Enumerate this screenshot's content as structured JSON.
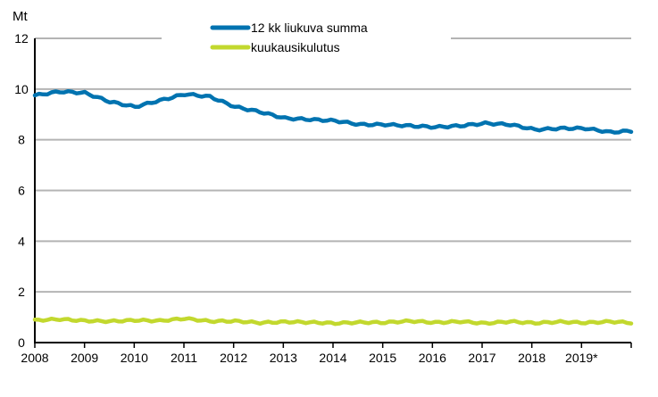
{
  "chart_data": {
    "type": "line",
    "title": "",
    "ylabel": "Mt",
    "xlabel": "",
    "ylim": [
      0,
      12
    ],
    "yticks": [
      0,
      2,
      4,
      6,
      8,
      10,
      12
    ],
    "xticks": [
      "2008",
      "2009",
      "2010",
      "2011",
      "2012",
      "2013",
      "2014",
      "2015",
      "2016",
      "2017",
      "2018",
      "2019*"
    ],
    "grid": true,
    "legend_position": "top-center",
    "x_resolution": "semi-annual points (approximate, read from monthly series)",
    "x": [
      "2008-01",
      "2008-07",
      "2009-01",
      "2009-07",
      "2010-01",
      "2010-07",
      "2011-01",
      "2011-07",
      "2012-01",
      "2012-07",
      "2013-01",
      "2013-07",
      "2014-01",
      "2014-07",
      "2015-01",
      "2015-07",
      "2016-01",
      "2016-07",
      "2017-01",
      "2017-07",
      "2018-01",
      "2018-07",
      "2019-01",
      "2019-07",
      "2019-12"
    ],
    "series": [
      {
        "name": "12 kk liukuva summa",
        "color": "#0073B0",
        "values": [
          9.75,
          9.9,
          9.85,
          9.5,
          9.3,
          9.55,
          9.8,
          9.7,
          9.3,
          9.1,
          8.85,
          8.8,
          8.75,
          8.6,
          8.6,
          8.55,
          8.5,
          8.55,
          8.65,
          8.6,
          8.4,
          8.45,
          8.45,
          8.3,
          8.35
        ]
      },
      {
        "name": "kuukausikulutus",
        "color": "#C2D82E",
        "values": [
          0.88,
          0.92,
          0.86,
          0.84,
          0.88,
          0.86,
          0.95,
          0.84,
          0.85,
          0.78,
          0.82,
          0.8,
          0.76,
          0.8,
          0.79,
          0.85,
          0.79,
          0.83,
          0.76,
          0.83,
          0.77,
          0.82,
          0.78,
          0.83,
          0.78
        ]
      }
    ]
  },
  "axis": {
    "y_unit": "Mt",
    "y_labels": [
      "0",
      "2",
      "4",
      "6",
      "8",
      "10",
      "12"
    ],
    "x_labels": [
      "2008",
      "2009",
      "2010",
      "2011",
      "2012",
      "2013",
      "2014",
      "2015",
      "2016",
      "2017",
      "2018",
      "2019*"
    ]
  },
  "legend": {
    "items": [
      {
        "label": "12 kk liukuva summa",
        "color": "#0073B0"
      },
      {
        "label": "kuukausikulutus",
        "color": "#C2D82E"
      }
    ]
  }
}
